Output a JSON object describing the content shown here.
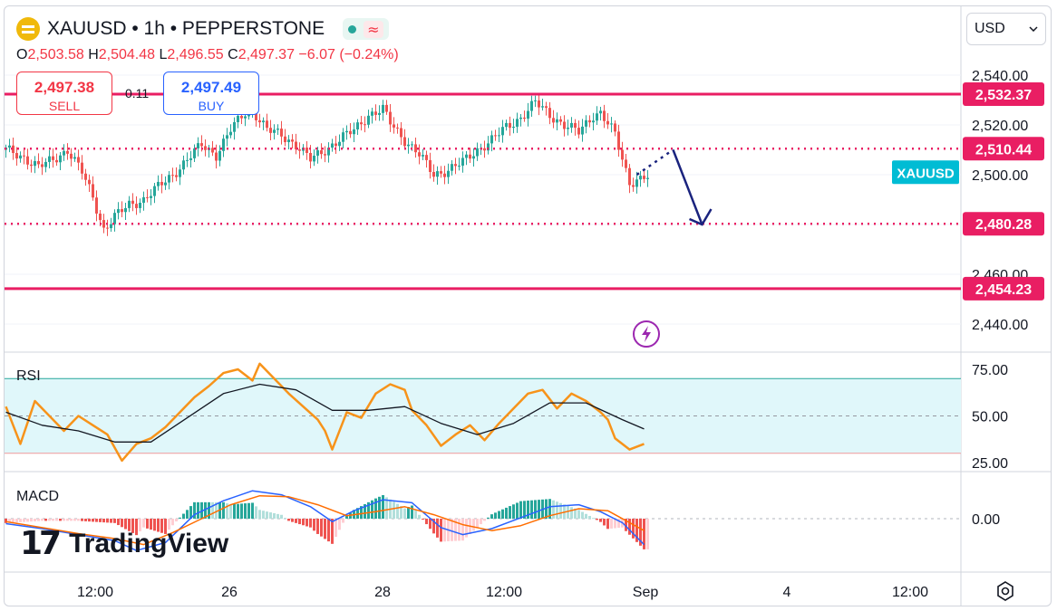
{
  "header": {
    "title": "XAUUSD • 1h • PEPPERSTONE",
    "ohlc": {
      "open_label": "O",
      "open": "2,503.58",
      "high_label": "H",
      "high": "2,504.48",
      "low_label": "L",
      "low": "2,496.55",
      "close_label": "C",
      "close": "2,497.37",
      "change": "−6.07 (−0.24%)"
    }
  },
  "trade": {
    "sell_price": "2,497.38",
    "sell_label": "SELL",
    "spread": "0.11",
    "buy_price": "2,497.49",
    "buy_label": "BUY"
  },
  "currency": {
    "value": "USD"
  },
  "branding": {
    "name": "TradingView"
  },
  "colors": {
    "up": "#26a69a",
    "down": "#ef5350",
    "level": "#e91e63",
    "arrow": "#1a237e",
    "rsi_line": "#f7931a",
    "rsi_ma": "#131722",
    "rsi_band": "#e0f7fa",
    "macd": "#2962ff",
    "signal": "#ff6d00",
    "symbol_badge": "#00bcd4"
  },
  "chart_data": [
    {
      "type": "candlestick",
      "symbol": "XAUUSD",
      "interval": "1h",
      "ylim": [
        2432,
        2552
      ],
      "y_ticks": [
        2440,
        2460,
        2480,
        2500,
        2520,
        2540
      ],
      "y_tick_labels": [
        "2,440.00",
        "2,460.00",
        "2,480.00",
        "2,500.00",
        "2,520.00",
        "2,540.00"
      ],
      "x_tick_labels": [
        "12:00",
        "26",
        "28",
        "12:00",
        "Sep",
        "4",
        "12:00"
      ],
      "close_path": [
        [
          0,
          2510
        ],
        [
          5,
          2507
        ],
        [
          9,
          2503
        ],
        [
          13,
          2506
        ],
        [
          17,
          2510
        ],
        [
          21,
          2501
        ],
        [
          24,
          2491
        ],
        [
          27,
          2478
        ],
        [
          30,
          2483
        ],
        [
          34,
          2488
        ],
        [
          38,
          2490
        ],
        [
          42,
          2495
        ],
        [
          46,
          2500
        ],
        [
          50,
          2506
        ],
        [
          54,
          2512
        ],
        [
          58,
          2508
        ],
        [
          62,
          2518
        ],
        [
          66,
          2525
        ],
        [
          68,
          2526
        ],
        [
          72,
          2518
        ],
        [
          76,
          2516
        ],
        [
          80,
          2512
        ],
        [
          84,
          2506
        ],
        [
          88,
          2510
        ],
        [
          92,
          2514
        ],
        [
          96,
          2518
        ],
        [
          100,
          2524
        ],
        [
          104,
          2526
        ],
        [
          106,
          2521
        ],
        [
          110,
          2514
        ],
        [
          114,
          2508
        ],
        [
          118,
          2500
        ],
        [
          122,
          2502
        ],
        [
          126,
          2505
        ],
        [
          130,
          2510
        ],
        [
          134,
          2514
        ],
        [
          138,
          2519
        ],
        [
          142,
          2523
        ],
        [
          146,
          2529
        ],
        [
          150,
          2524
        ],
        [
          154,
          2520
        ],
        [
          158,
          2517
        ],
        [
          162,
          2524
        ],
        [
          164,
          2525
        ],
        [
          168,
          2516
        ],
        [
          170,
          2506
        ],
        [
          172,
          2497
        ],
        [
          176,
          2499
        ]
      ],
      "levels": [
        {
          "price": "2,532.37",
          "style": "solid"
        },
        {
          "price": "2,510.44",
          "style": "dotted"
        },
        {
          "price": "2,480.28",
          "style": "dotted"
        },
        {
          "price": "2,454.23",
          "style": "solid"
        }
      ],
      "symbol_badge": "XAUUSD",
      "forecast": {
        "from": [
          174,
          2500
        ],
        "via": [
          184,
          2510
        ],
        "to": [
          192,
          2480
        ]
      }
    },
    {
      "type": "line",
      "name": "RSI",
      "ylim": [
        20,
        80
      ],
      "y_tick_labels": [
        "75.00",
        "50.00",
        "25.00"
      ],
      "band": [
        30,
        70
      ],
      "rsi": [
        [
          0,
          55
        ],
        [
          4,
          35
        ],
        [
          8,
          58
        ],
        [
          12,
          50
        ],
        [
          16,
          42
        ],
        [
          20,
          50
        ],
        [
          24,
          45
        ],
        [
          28,
          40
        ],
        [
          32,
          26
        ],
        [
          36,
          35
        ],
        [
          40,
          38
        ],
        [
          44,
          44
        ],
        [
          48,
          52
        ],
        [
          52,
          60
        ],
        [
          56,
          66
        ],
        [
          60,
          73
        ],
        [
          64,
          75
        ],
        [
          68,
          69
        ],
        [
          70,
          78
        ],
        [
          74,
          70
        ],
        [
          78,
          62
        ],
        [
          82,
          55
        ],
        [
          86,
          48
        ],
        [
          88,
          42
        ],
        [
          90,
          32
        ],
        [
          94,
          52
        ],
        [
          98,
          49
        ],
        [
          102,
          62
        ],
        [
          106,
          67
        ],
        [
          110,
          64
        ],
        [
          112,
          53
        ],
        [
          116,
          45
        ],
        [
          120,
          34
        ],
        [
          124,
          40
        ],
        [
          128,
          45
        ],
        [
          132,
          37
        ],
        [
          136,
          46
        ],
        [
          140,
          54
        ],
        [
          144,
          62
        ],
        [
          148,
          64
        ],
        [
          152,
          54
        ],
        [
          156,
          62
        ],
        [
          160,
          58
        ],
        [
          164,
          52
        ],
        [
          166,
          48
        ],
        [
          168,
          38
        ],
        [
          172,
          32
        ],
        [
          176,
          35
        ]
      ],
      "rsi_ma": [
        [
          0,
          52
        ],
        [
          10,
          45
        ],
        [
          20,
          42
        ],
        [
          30,
          36
        ],
        [
          40,
          36
        ],
        [
          50,
          49
        ],
        [
          60,
          62
        ],
        [
          70,
          67
        ],
        [
          80,
          64
        ],
        [
          90,
          53
        ],
        [
          100,
          53
        ],
        [
          110,
          55
        ],
        [
          120,
          46
        ],
        [
          130,
          40
        ],
        [
          140,
          46
        ],
        [
          150,
          57
        ],
        [
          160,
          57
        ],
        [
          170,
          48
        ],
        [
          176,
          43
        ]
      ]
    },
    {
      "type": "bar",
      "name": "MACD",
      "y_tick_labels": [
        "0.00"
      ],
      "macd": [
        [
          0,
          -0.5
        ],
        [
          10,
          -1.0
        ],
        [
          20,
          -1.6
        ],
        [
          30,
          -2.2
        ],
        [
          36,
          -3.2
        ],
        [
          44,
          -2.4
        ],
        [
          52,
          0.4
        ],
        [
          60,
          1.8
        ],
        [
          68,
          2.8
        ],
        [
          76,
          2.4
        ],
        [
          84,
          1.2
        ],
        [
          90,
          -0.3
        ],
        [
          96,
          0.8
        ],
        [
          104,
          1.9
        ],
        [
          112,
          1.6
        ],
        [
          120,
          -0.9
        ],
        [
          126,
          -1.6
        ],
        [
          134,
          -1.0
        ],
        [
          142,
          0.1
        ],
        [
          150,
          1.2
        ],
        [
          158,
          1.4
        ],
        [
          164,
          0.7
        ],
        [
          170,
          -0.4
        ],
        [
          176,
          -2.6
        ]
      ],
      "signal": [
        [
          0,
          -0.3
        ],
        [
          10,
          -0.9
        ],
        [
          20,
          -1.5
        ],
        [
          30,
          -2.0
        ],
        [
          38,
          -2.6
        ],
        [
          46,
          -1.4
        ],
        [
          54,
          0.0
        ],
        [
          62,
          1.4
        ],
        [
          70,
          2.3
        ],
        [
          78,
          2.2
        ],
        [
          86,
          1.4
        ],
        [
          94,
          0.3
        ],
        [
          102,
          0.7
        ],
        [
          110,
          1.2
        ],
        [
          118,
          0.4
        ],
        [
          126,
          -0.6
        ],
        [
          134,
          -1.2
        ],
        [
          142,
          -0.7
        ],
        [
          150,
          0.3
        ],
        [
          158,
          1.0
        ],
        [
          166,
          0.8
        ],
        [
          176,
          -1.2
        ]
      ]
    }
  ]
}
